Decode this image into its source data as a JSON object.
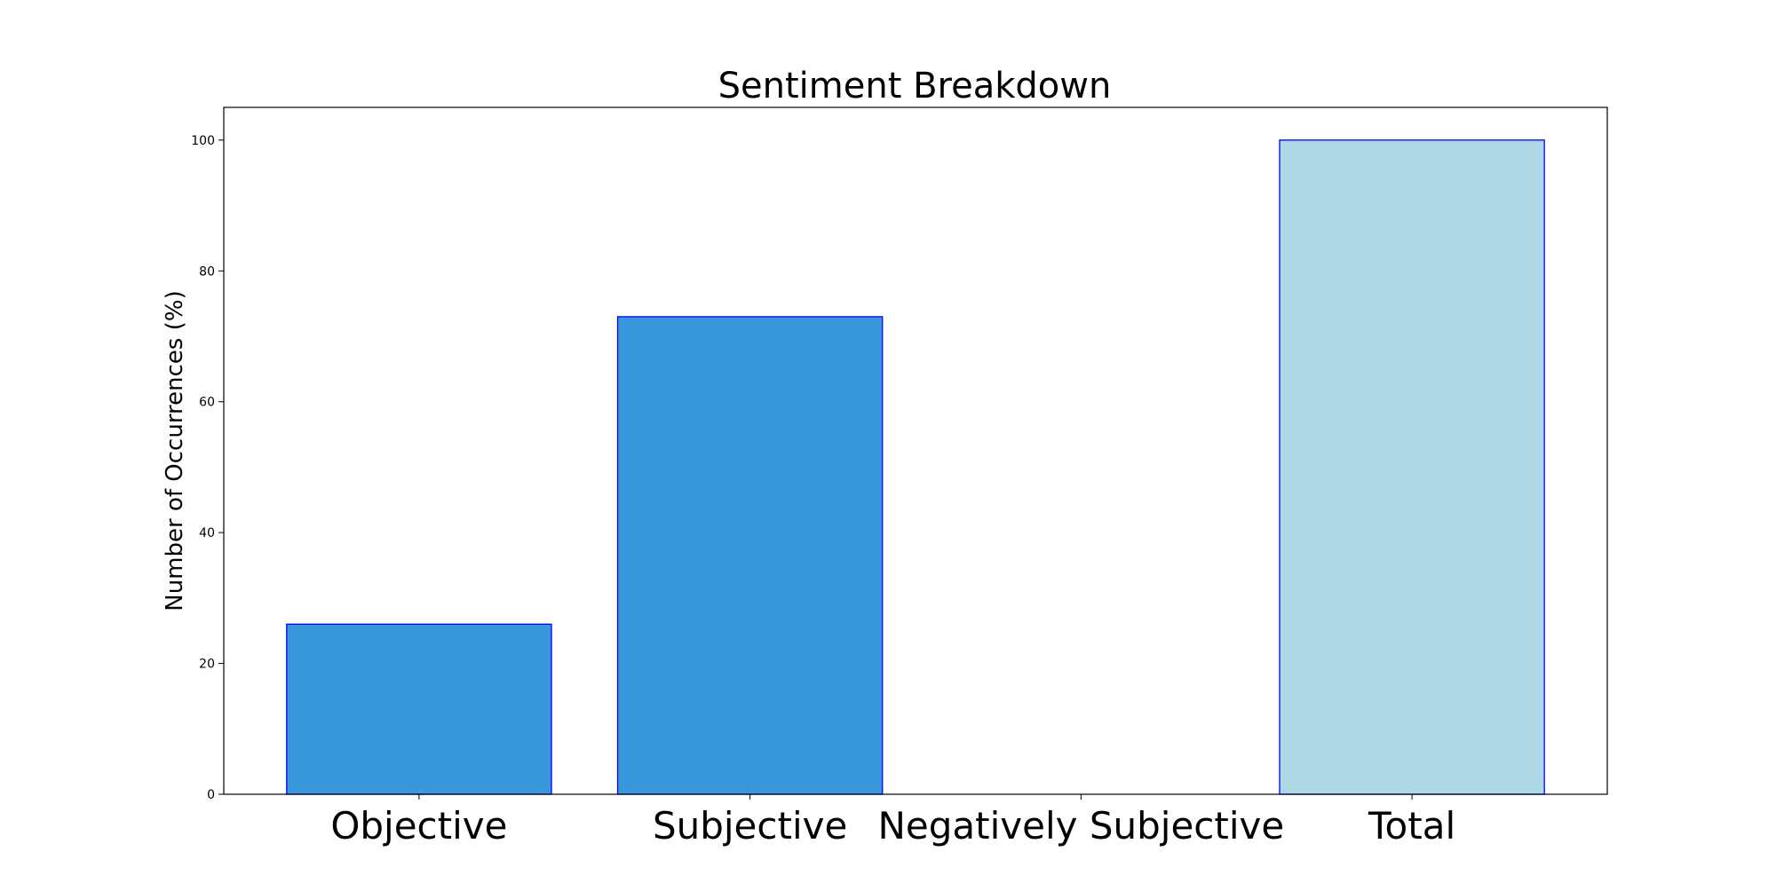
{
  "chart_data": {
    "type": "bar",
    "title": "Sentiment Breakdown",
    "xlabel": "",
    "ylabel": "Number of Occurrences (%)",
    "categories": [
      "Objective",
      "Subjective",
      "Negatively Subjective",
      "Total"
    ],
    "values": [
      26,
      73,
      0,
      100
    ],
    "bar_colors": [
      "#3898db",
      "#3898db",
      "#3898db",
      "#add8e6"
    ],
    "bar_edge_color": "#0000ff",
    "ylim": [
      0,
      105
    ],
    "yticks": [
      0,
      20,
      40,
      60,
      80,
      100
    ],
    "grid": false,
    "legend": "none"
  }
}
